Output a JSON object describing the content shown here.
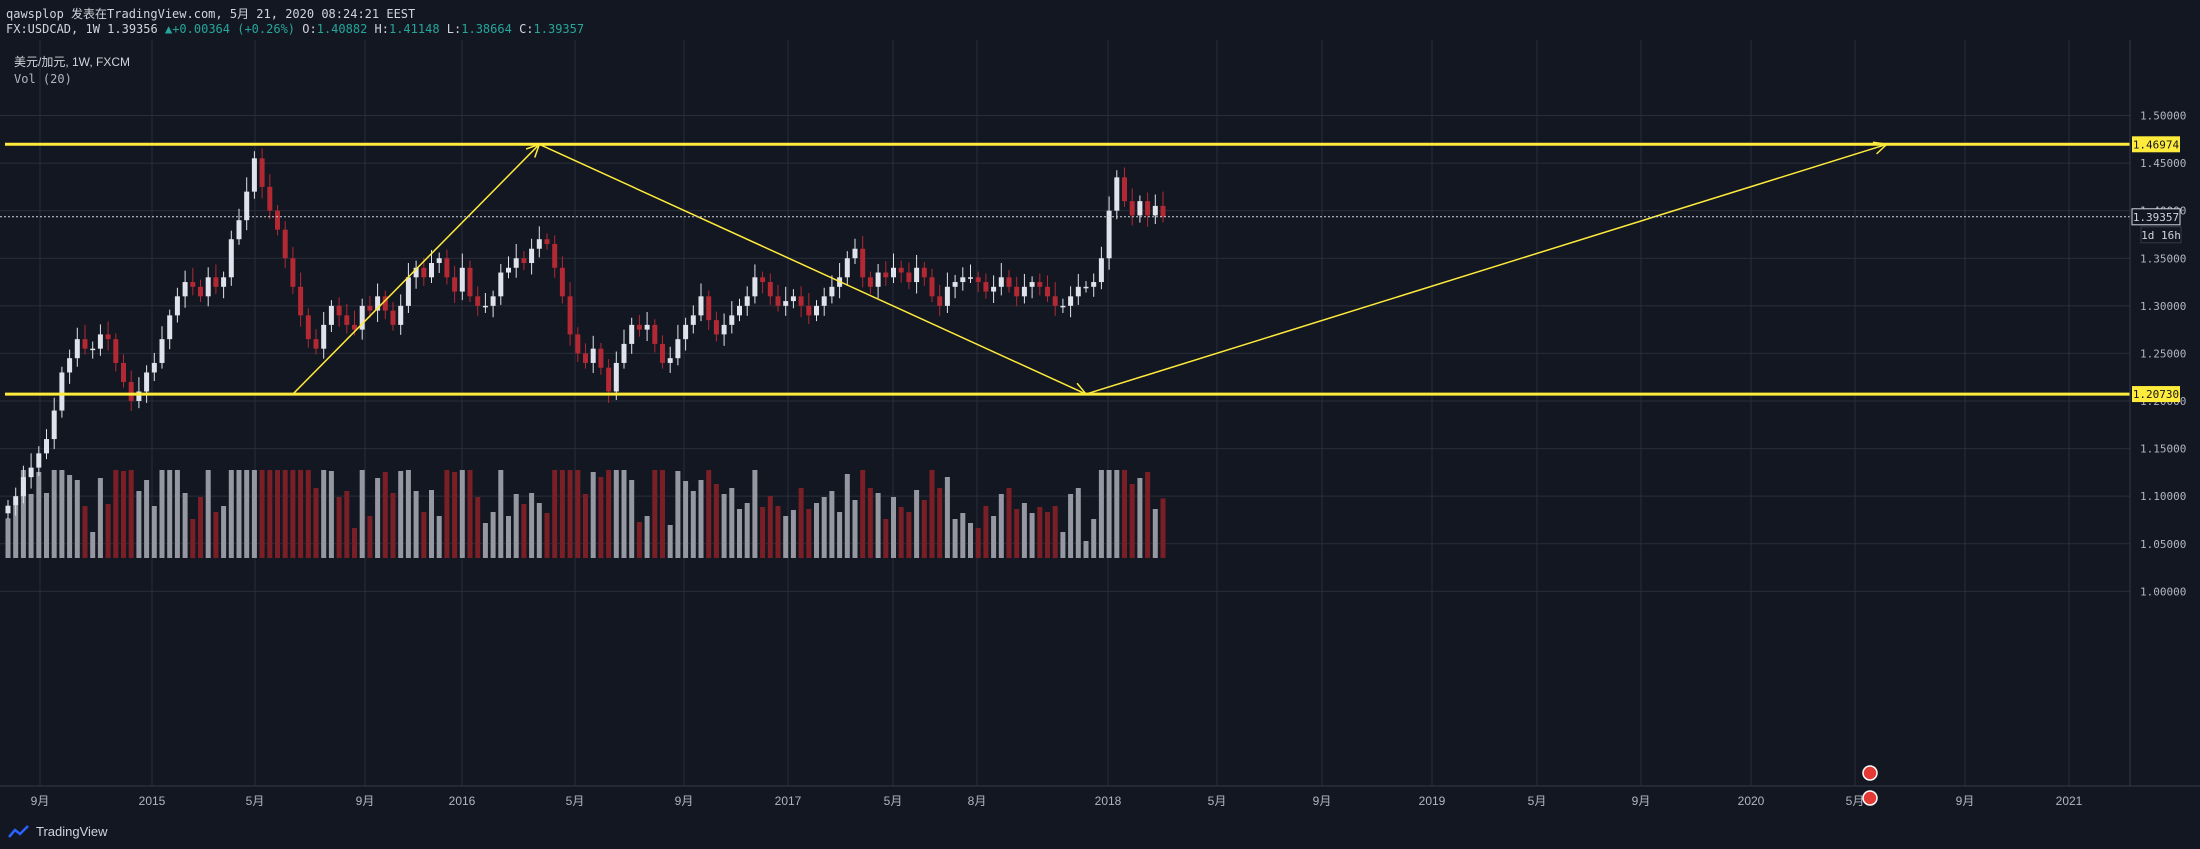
{
  "header": {
    "author": "qawsplop",
    "published": "发表在TradingView.com, 5月 21, 2020 08:24:21 EEST",
    "symbol": "FX:USDCAD, 1W",
    "last": "1.39356",
    "change": "+0.00364 (+0.26%)",
    "ohlc": {
      "o_label": "O:",
      "o": "1.40882",
      "h_label": "H:",
      "h": "1.41148",
      "l_label": "L:",
      "l": "1.38664",
      "c_label": "C:",
      "c": "1.39357"
    }
  },
  "legend": {
    "title": "美元/加元, 1W, FXCM",
    "volume": "Vol (20)"
  },
  "footer": {
    "brand": "TradingView"
  },
  "colors": {
    "background": "#131722",
    "up": "#e0e3eb",
    "down": "#b22833",
    "vol_up": "#9598a1",
    "vol_down": "#7a1f25",
    "annotation": "#ffeb3b",
    "grid": "#2a2e39"
  },
  "chart_data": {
    "type": "candlestick",
    "interval": "1W",
    "y_axis": {
      "ylim": [
        0.98,
        1.53
      ],
      "ticks": [
        "1.50000",
        "1.45000",
        "1.40000",
        "1.35000",
        "1.30000",
        "1.25000",
        "1.20000",
        "1.15000",
        "1.10000",
        "1.05000",
        "1.00000"
      ]
    },
    "x_axis": {
      "ticks": [
        "9月",
        "2015",
        "5月",
        "9月",
        "2016",
        "5月",
        "9月",
        "2017",
        "5月",
        "8月",
        "2018",
        "5月",
        "9月",
        "2019",
        "5月",
        "9月",
        "2020",
        "5月",
        "9月",
        "2021"
      ]
    },
    "horizontal_levels": [
      {
        "value": 1.46974,
        "label": "1.46974"
      },
      {
        "value": 1.2073,
        "label": "1.20730"
      }
    ],
    "current_price": {
      "value": 1.39357,
      "label": "1.39357",
      "countdown": "1d 16h"
    },
    "close_series": [
      1.09,
      1.1,
      1.12,
      1.13,
      1.145,
      1.16,
      1.19,
      1.23,
      1.245,
      1.265,
      1.255,
      1.255,
      1.27,
      1.265,
      1.24,
      1.22,
      1.2,
      1.21,
      1.23,
      1.24,
      1.265,
      1.29,
      1.31,
      1.325,
      1.32,
      1.31,
      1.33,
      1.32,
      1.33,
      1.37,
      1.39,
      1.42,
      1.455,
      1.425,
      1.4,
      1.38,
      1.35,
      1.32,
      1.29,
      1.265,
      1.255,
      1.28,
      1.3,
      1.29,
      1.28,
      1.275,
      1.3,
      1.295,
      1.31,
      1.295,
      1.28,
      1.3,
      1.33,
      1.34,
      1.33,
      1.345,
      1.35,
      1.33,
      1.315,
      1.34,
      1.31,
      1.3,
      1.3,
      1.31,
      1.335,
      1.34,
      1.35,
      1.345,
      1.36,
      1.37,
      1.365,
      1.34,
      1.31,
      1.27,
      1.25,
      1.24,
      1.255,
      1.235,
      1.21,
      1.24,
      1.26,
      1.28,
      1.275,
      1.28,
      1.26,
      1.24,
      1.245,
      1.265,
      1.28,
      1.29,
      1.31,
      1.285,
      1.27,
      1.28,
      1.29,
      1.3,
      1.31,
      1.33,
      1.325,
      1.31,
      1.3,
      1.305,
      1.31,
      1.3,
      1.29,
      1.3,
      1.31,
      1.32,
      1.33,
      1.35,
      1.36,
      1.33,
      1.32,
      1.335,
      1.33,
      1.34,
      1.335,
      1.325,
      1.34,
      1.33,
      1.31,
      1.3,
      1.32,
      1.325,
      1.33,
      1.33,
      1.325,
      1.315,
      1.32,
      1.33,
      1.32,
      1.31,
      1.32,
      1.325,
      1.32,
      1.31,
      1.3,
      1.3,
      1.31,
      1.32,
      1.32,
      1.325,
      1.35,
      1.4,
      1.435,
      1.41,
      1.395,
      1.41,
      1.395,
      1.405,
      1.39357
    ],
    "drawings": [
      {
        "type": "arrow",
        "from": {
          "t": 37,
          "p": 1.2073
        },
        "to": {
          "t": 69,
          "p": 1.46974
        }
      },
      {
        "type": "arrow",
        "from": {
          "t": 69,
          "p": 1.46974
        },
        "to": {
          "t": 140,
          "p": 1.2073
        }
      },
      {
        "type": "arrow",
        "from": {
          "t": 140,
          "p": 1.2073
        },
        "to": {
          "t": 244,
          "p": 1.46974
        }
      }
    ]
  }
}
